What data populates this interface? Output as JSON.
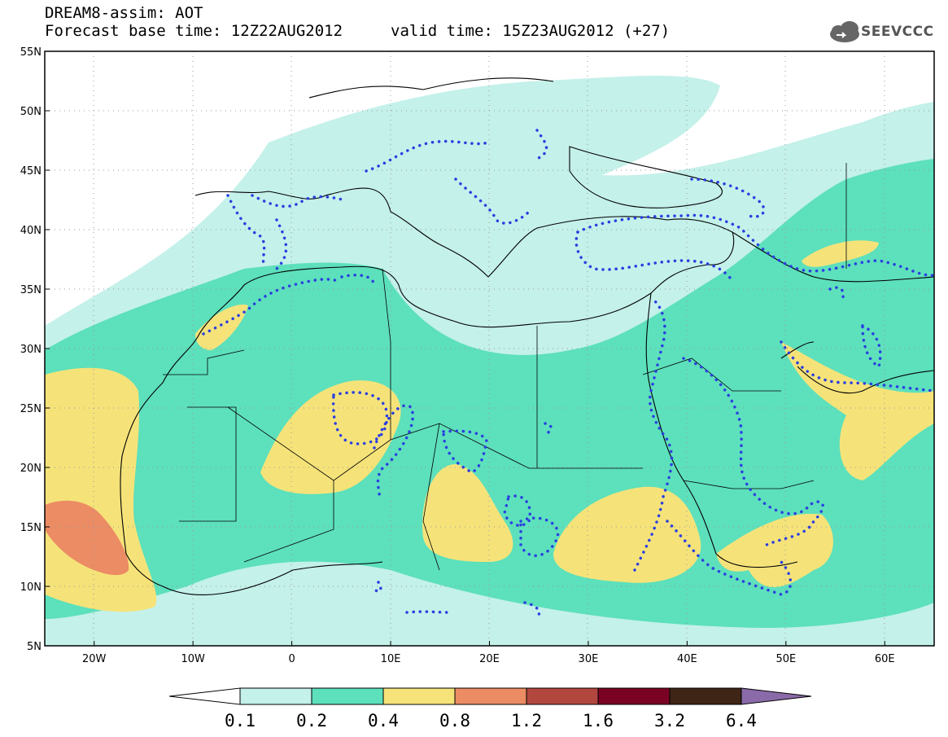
{
  "header": {
    "title": "DREAM8-assim: AOT",
    "base_time": "Forecast base time: 12Z22AUG2012",
    "valid_time": "valid time: 15Z23AUG2012 (+27)",
    "logo_text": "SEEVCCC"
  },
  "map": {
    "variable": "AOT",
    "lat_labels": [
      "55N",
      "50N",
      "45N",
      "40N",
      "35N",
      "30N",
      "25N",
      "20N",
      "15N",
      "10N",
      "5N"
    ],
    "lon_labels": [
      "20W",
      "10W",
      "0",
      "10E",
      "20E",
      "30E",
      "40E",
      "50E",
      "60E"
    ],
    "lat_range": [
      5,
      55
    ],
    "lon_range": [
      -25,
      65
    ],
    "grid": "dotted",
    "dust_contour_color": "#2a3fe0"
  },
  "colorbar": {
    "levels": [
      "0.1",
      "0.2",
      "0.4",
      "0.8",
      "1.2",
      "1.6",
      "3.2",
      "6.4"
    ],
    "colors": [
      "#ffffff",
      "#c4f1ea",
      "#5de0bc",
      "#f5e37a",
      "#eb8c64",
      "#b2473f",
      "#7a0324",
      "#3e2515",
      "#8a6aa8"
    ]
  }
}
